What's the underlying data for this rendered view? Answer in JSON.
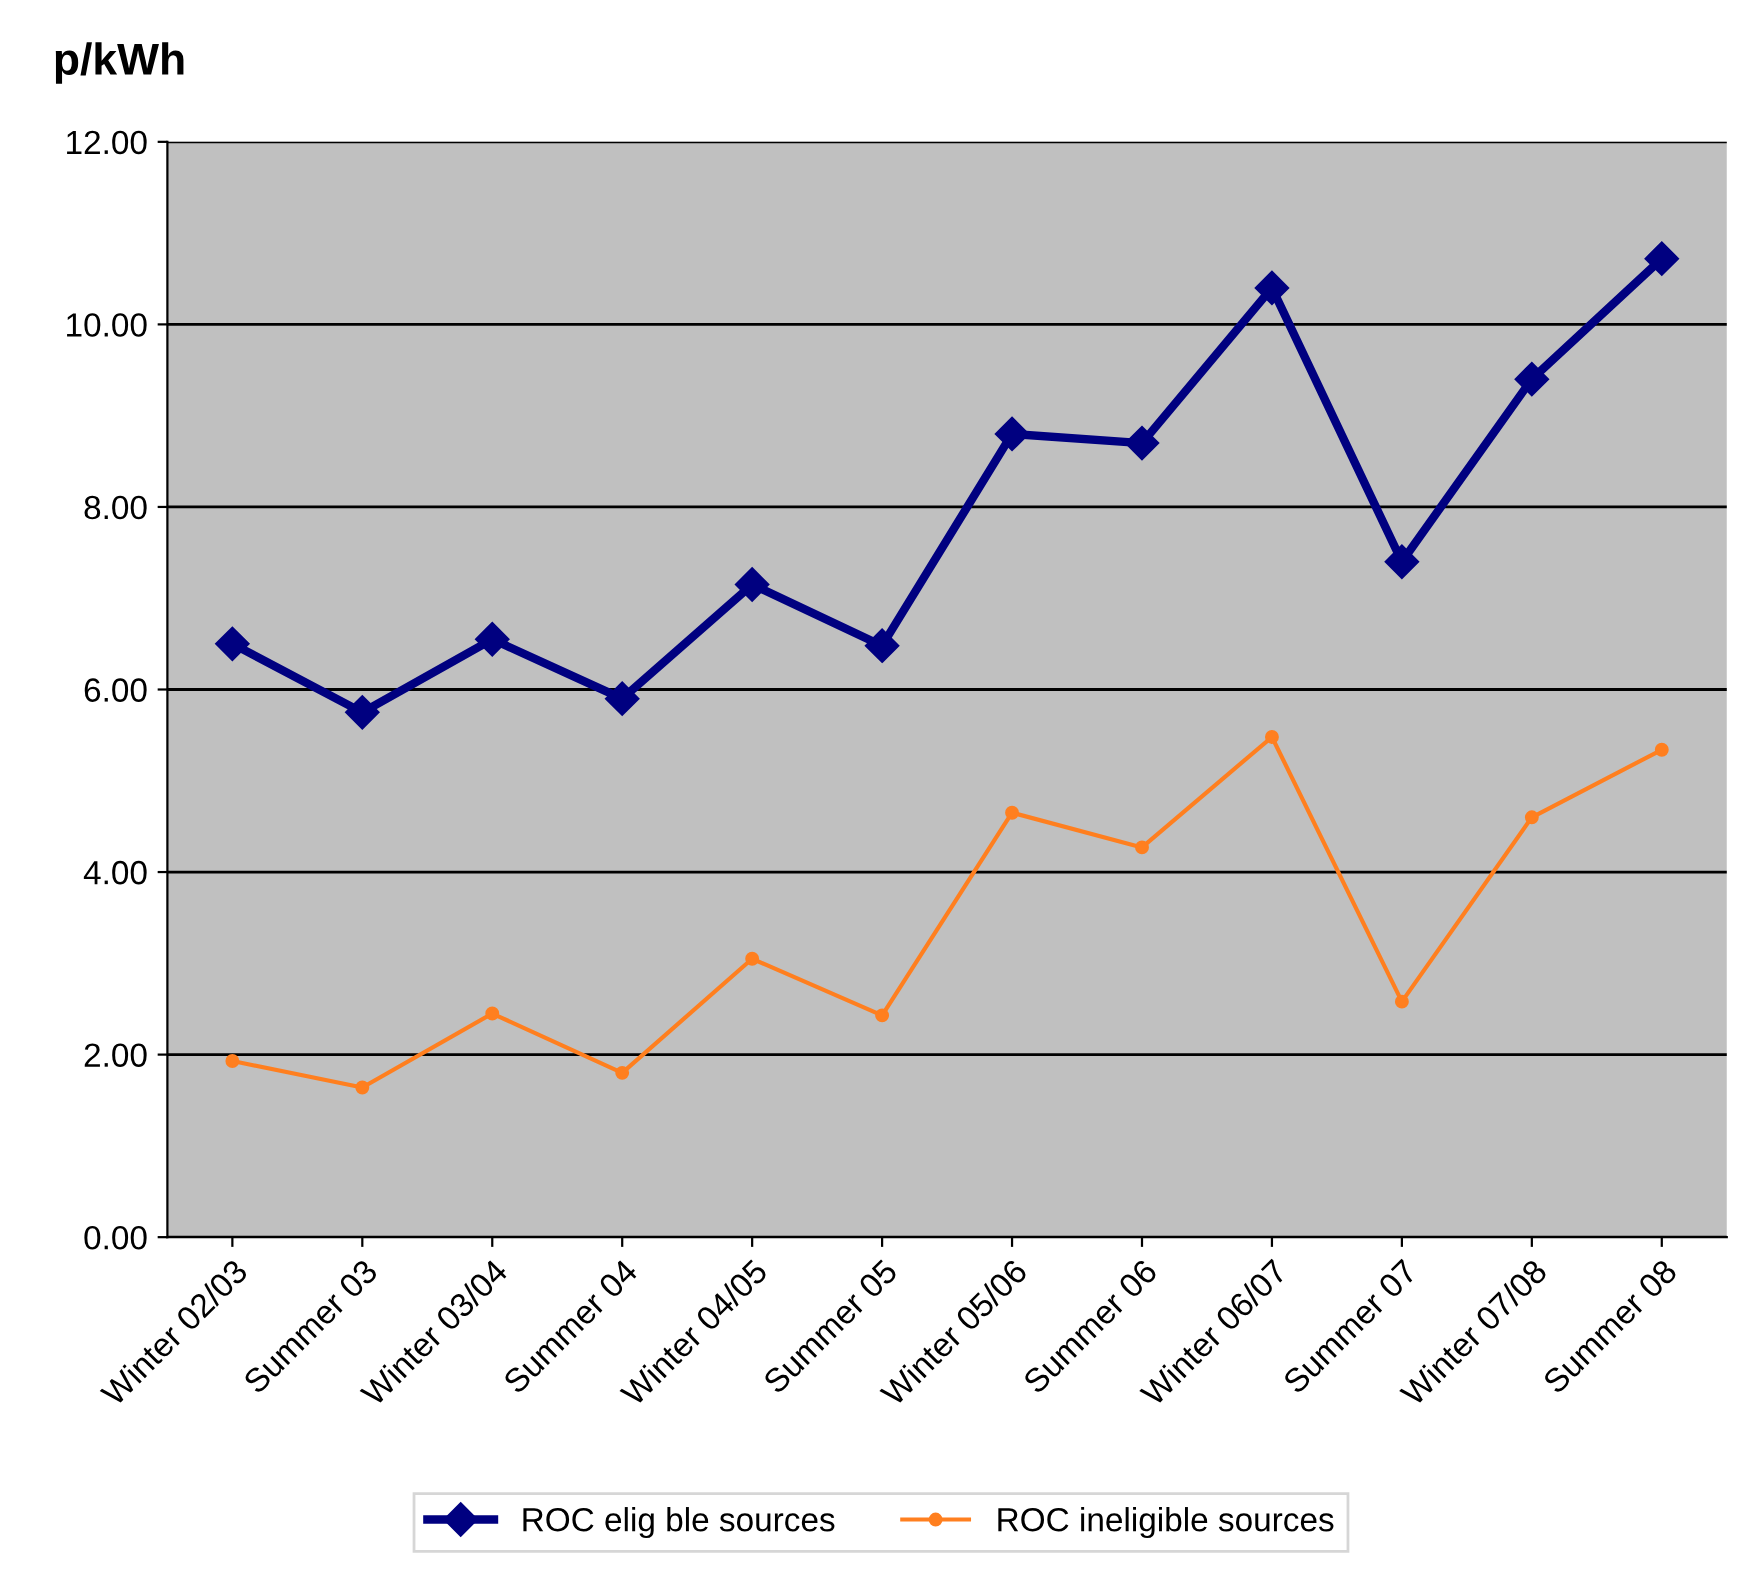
{
  "chart_data": {
    "type": "line",
    "ylabel": "p/kWh",
    "categories": [
      "Winter 02/03",
      "Summer 03",
      "Winter 03/04",
      "Summer 04",
      "Winter 04/05",
      "Summer 05",
      "Winter 05/06",
      "Summer 06",
      "Winter 06/07",
      "Summer 07",
      "Winter 07/08",
      "Summer 08"
    ],
    "series": [
      {
        "name": "ROC elig ble sources",
        "color": "#000080",
        "marker": "diamond",
        "values": [
          6.5,
          5.75,
          6.55,
          5.9,
          7.15,
          6.48,
          8.8,
          8.7,
          10.4,
          7.4,
          9.4,
          10.72
        ]
      },
      {
        "name": "ROC ineligible sources",
        "color": "#ff7f1f",
        "marker": "circle",
        "values": [
          1.93,
          1.64,
          2.45,
          1.8,
          3.05,
          2.43,
          4.65,
          4.27,
          5.48,
          2.58,
          4.6,
          5.34
        ]
      }
    ],
    "ylim": [
      0,
      12
    ],
    "yticks": [
      {
        "value": 0,
        "label": "0.00"
      },
      {
        "value": 2,
        "label": "2.00"
      },
      {
        "value": 4,
        "label": "4.00"
      },
      {
        "value": 6,
        "label": "6.00"
      },
      {
        "value": 8,
        "label": "8.00"
      },
      {
        "value": 10,
        "label": "10.00"
      },
      {
        "value": 12,
        "label": "12.00"
      }
    ],
    "grid": "y",
    "legend": "bottom"
  }
}
